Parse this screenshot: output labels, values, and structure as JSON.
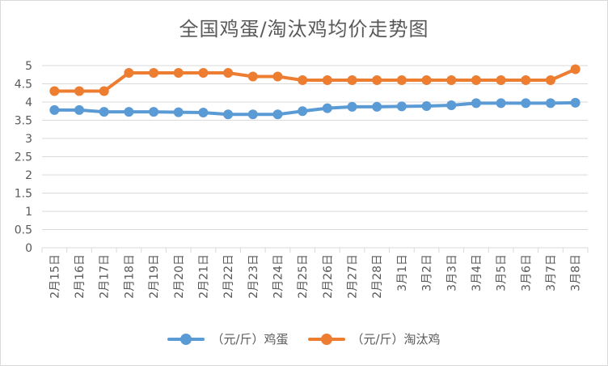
{
  "chart_data": {
    "type": "line",
    "title": "全国鸡蛋/淘汰鸡均价走势图",
    "xlabel": "",
    "ylabel": "",
    "ylim": [
      0,
      5
    ],
    "yticks": [
      0,
      0.5,
      1,
      1.5,
      2,
      2.5,
      3,
      3.5,
      4,
      4.5,
      5
    ],
    "yticks_labels": [
      "0",
      "0.5",
      "1",
      "1.5",
      "2",
      "2.5",
      "3",
      "3.5",
      "4",
      "4.5",
      "5"
    ],
    "grid": true,
    "legend": "bottom",
    "categories": [
      "2月15日",
      "2月16日",
      "2月17日",
      "2月18日",
      "2月19日",
      "2月20日",
      "2月21日",
      "2月22日",
      "2月23日",
      "2月24日",
      "2月25日",
      "2月26日",
      "2月27日",
      "2月28日",
      "3月1日",
      "3月2日",
      "3月3日",
      "3月4日",
      "3月5日",
      "3月6日",
      "3月7日",
      "3月8日"
    ],
    "series": [
      {
        "name": "（元/斤）鸡蛋",
        "color": "#5b9bd5",
        "values": [
          3.78,
          3.78,
          3.73,
          3.73,
          3.73,
          3.72,
          3.71,
          3.66,
          3.66,
          3.66,
          3.75,
          3.83,
          3.87,
          3.87,
          3.88,
          3.89,
          3.91,
          3.97,
          3.97,
          3.97,
          3.97,
          3.98
        ]
      },
      {
        "name": "（元/斤）淘汰鸡",
        "color": "#ed7d31",
        "values": [
          4.3,
          4.3,
          4.3,
          4.8,
          4.8,
          4.8,
          4.8,
          4.8,
          4.7,
          4.7,
          4.6,
          4.6,
          4.6,
          4.6,
          4.6,
          4.6,
          4.6,
          4.6,
          4.6,
          4.6,
          4.6,
          4.9
        ]
      }
    ]
  }
}
